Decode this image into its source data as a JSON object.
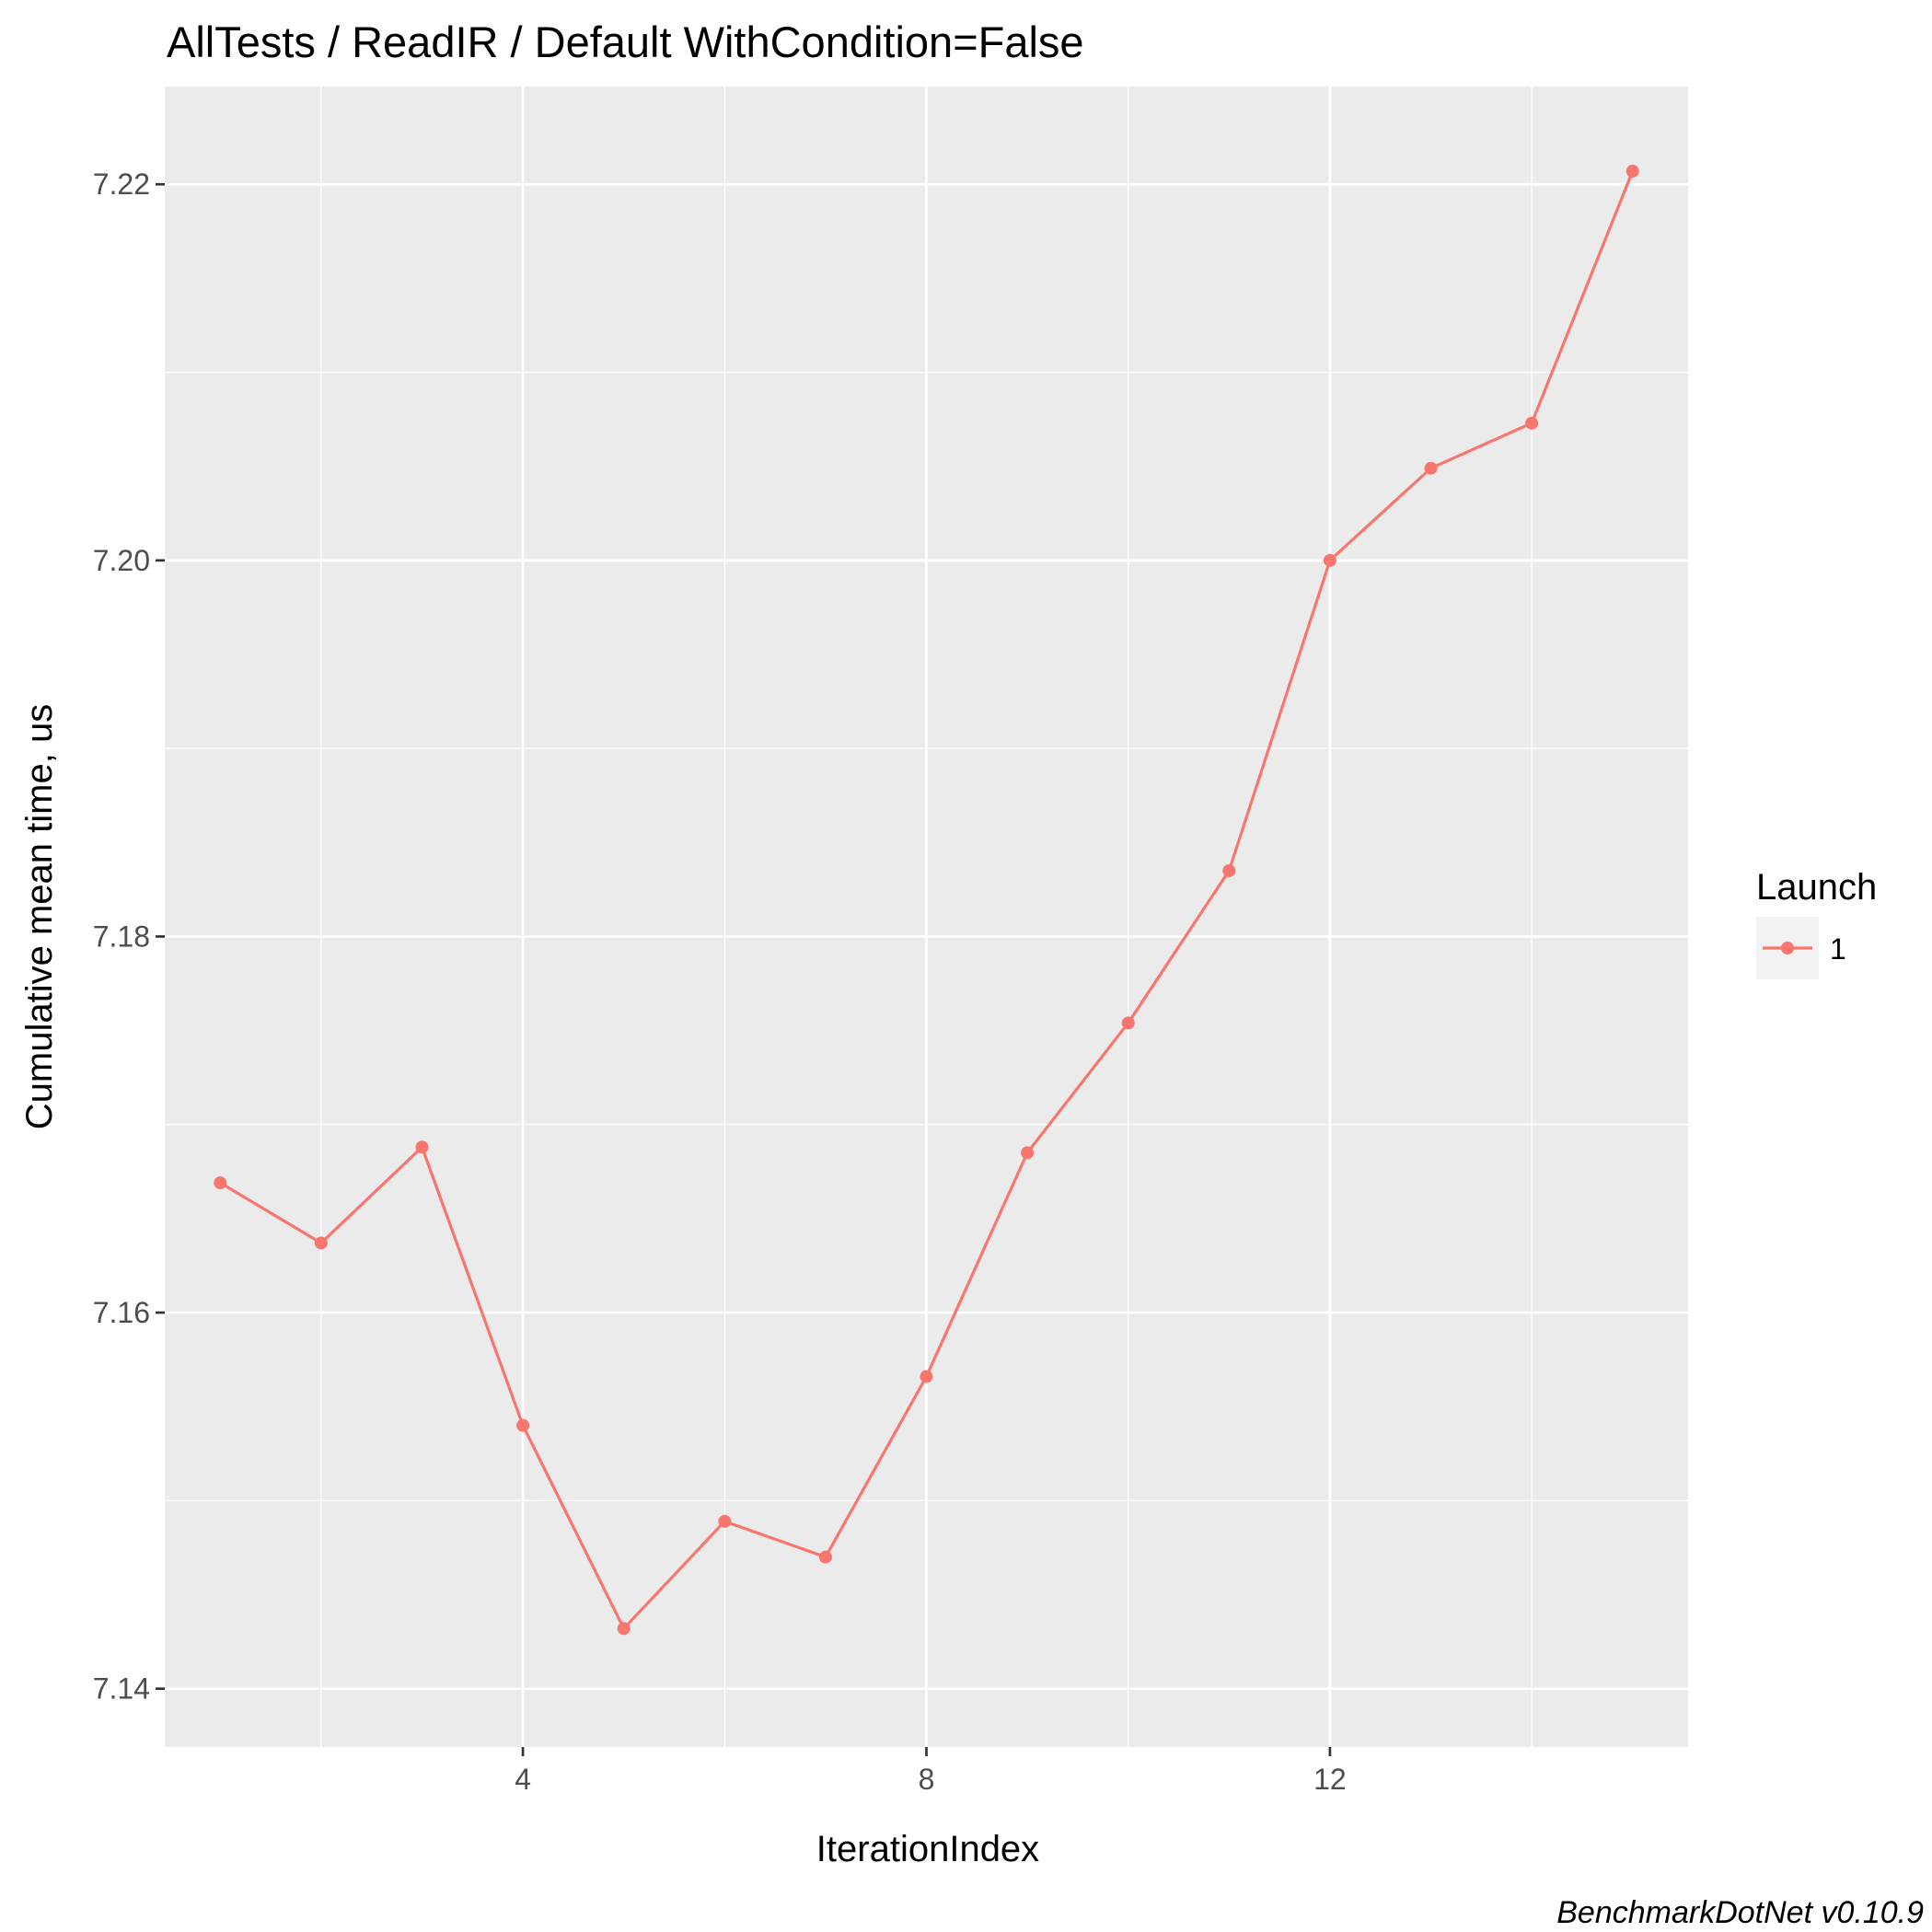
{
  "chart_data": {
    "type": "line",
    "title": "AllTests / ReadIR / Default WithCondition=False",
    "xlabel": "IterationIndex",
    "ylabel": "Cumulative mean time, us",
    "caption": "BenchmarkDotNet v0.10.9",
    "xlim": [
      0.45,
      15.55
    ],
    "ylim": [
      7.1369,
      7.2252
    ],
    "x_ticks": [
      4,
      8,
      12
    ],
    "x_tick_labels": [
      "4",
      "8",
      "12"
    ],
    "y_ticks": [
      7.14,
      7.16,
      7.18,
      7.2,
      7.22
    ],
    "y_tick_labels": [
      "7.14",
      "7.16",
      "7.18",
      "7.20",
      "7.22"
    ],
    "grid": true,
    "legend": {
      "title": "Launch",
      "position": "right",
      "entries": [
        "1"
      ]
    },
    "series": [
      {
        "name": "1",
        "color": "#f8766d",
        "x": [
          1,
          2,
          3,
          4,
          5,
          6,
          7,
          8,
          9,
          10,
          11,
          12,
          13,
          14,
          15
        ],
        "values": [
          7.1669,
          7.1637,
          7.1688,
          7.154,
          7.1432,
          7.1489,
          7.147,
          7.1566,
          7.1685,
          7.1754,
          7.1835,
          7.2,
          7.2049,
          7.2073,
          7.2207
        ]
      }
    ]
  }
}
